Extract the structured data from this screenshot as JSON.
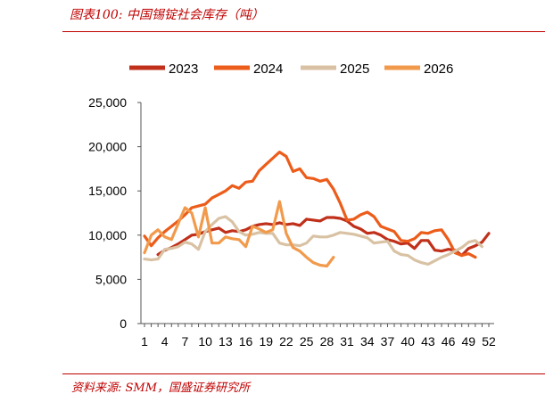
{
  "page": {
    "title": "图表100:  中国锡锭社会库存（吨）",
    "source": "资料来源:  SMM，国盛证券研究所"
  },
  "chart_data": {
    "type": "line",
    "title": "中国锡锭社会库存（吨）",
    "xlabel": "",
    "ylabel": "",
    "xlim": [
      1,
      52
    ],
    "ylim": [
      0,
      25000
    ],
    "x_ticks": [
      1,
      4,
      7,
      10,
      13,
      16,
      19,
      22,
      25,
      28,
      31,
      34,
      37,
      40,
      43,
      46,
      49,
      52
    ],
    "y_ticks": [
      0,
      5000,
      10000,
      15000,
      20000,
      25000
    ],
    "y_tick_labels": [
      "0",
      "5,000",
      "10,000",
      "15,000",
      "20,000",
      "25,000"
    ],
    "grid": false,
    "legend_position": "top",
    "series": [
      {
        "name": "2023",
        "color": "#c0301a",
        "points": [
          [
            3,
            7800
          ],
          [
            4,
            8300
          ],
          [
            5,
            8600
          ],
          [
            6,
            9000
          ],
          [
            7,
            9500
          ],
          [
            8,
            10000
          ],
          [
            9,
            10100
          ],
          [
            10,
            10400
          ],
          [
            11,
            10600
          ],
          [
            12,
            10800
          ],
          [
            13,
            10300
          ],
          [
            14,
            10500
          ],
          [
            15,
            10400
          ],
          [
            16,
            10600
          ],
          [
            17,
            11000
          ],
          [
            18,
            11200
          ],
          [
            19,
            11300
          ],
          [
            20,
            11200
          ],
          [
            21,
            11400
          ],
          [
            22,
            11200
          ],
          [
            23,
            11300
          ],
          [
            24,
            11100
          ],
          [
            25,
            11800
          ],
          [
            26,
            11700
          ],
          [
            27,
            11600
          ],
          [
            28,
            12000
          ],
          [
            29,
            12000
          ],
          [
            30,
            11900
          ],
          [
            31,
            11600
          ],
          [
            32,
            11000
          ],
          [
            33,
            10700
          ],
          [
            34,
            10200
          ],
          [
            35,
            10300
          ],
          [
            36,
            10000
          ],
          [
            37,
            9500
          ],
          [
            38,
            9300
          ],
          [
            39,
            9000
          ],
          [
            40,
            9100
          ],
          [
            41,
            8500
          ],
          [
            42,
            9400
          ],
          [
            43,
            9400
          ],
          [
            44,
            8300
          ],
          [
            45,
            8200
          ],
          [
            46,
            8400
          ],
          [
            47,
            8300
          ],
          [
            48,
            7700
          ],
          [
            49,
            8500
          ],
          [
            50,
            8800
          ],
          [
            51,
            9200
          ],
          [
            52,
            10200
          ]
        ]
      },
      {
        "name": "2024",
        "color": "#ec5c1a",
        "points": [
          [
            1,
            9900
          ],
          [
            2,
            8800
          ],
          [
            3,
            9700
          ],
          [
            4,
            10400
          ],
          [
            5,
            11000
          ],
          [
            6,
            11600
          ],
          [
            7,
            12300
          ],
          [
            8,
            13100
          ],
          [
            9,
            13300
          ],
          [
            10,
            13500
          ],
          [
            11,
            14200
          ],
          [
            12,
            14600
          ],
          [
            13,
            15000
          ],
          [
            14,
            15600
          ],
          [
            15,
            15300
          ],
          [
            16,
            16000
          ],
          [
            17,
            16100
          ],
          [
            18,
            17300
          ],
          [
            19,
            18000
          ],
          [
            20,
            18700
          ],
          [
            21,
            19400
          ],
          [
            22,
            18900
          ],
          [
            23,
            17200
          ],
          [
            24,
            17500
          ],
          [
            25,
            16500
          ],
          [
            26,
            16400
          ],
          [
            27,
            16100
          ],
          [
            28,
            16300
          ],
          [
            29,
            15200
          ],
          [
            30,
            13600
          ],
          [
            31,
            11700
          ],
          [
            32,
            11800
          ],
          [
            33,
            12300
          ],
          [
            34,
            12600
          ],
          [
            35,
            12100
          ],
          [
            36,
            11000
          ],
          [
            37,
            10700
          ],
          [
            38,
            10400
          ],
          [
            39,
            9400
          ],
          [
            40,
            9300
          ],
          [
            41,
            9600
          ],
          [
            42,
            10300
          ],
          [
            43,
            10200
          ],
          [
            44,
            10500
          ],
          [
            45,
            10600
          ],
          [
            46,
            9500
          ],
          [
            47,
            8000
          ],
          [
            48,
            7700
          ],
          [
            49,
            7900
          ],
          [
            50,
            7500
          ]
        ]
      },
      {
        "name": "2025",
        "color": "#d9c2a4",
        "points": [
          [
            1,
            7300
          ],
          [
            2,
            7200
          ],
          [
            3,
            7300
          ],
          [
            4,
            8400
          ],
          [
            5,
            8500
          ],
          [
            6,
            8700
          ],
          [
            7,
            9200
          ],
          [
            8,
            9000
          ],
          [
            9,
            8400
          ],
          [
            10,
            10400
          ],
          [
            11,
            11200
          ],
          [
            12,
            11900
          ],
          [
            13,
            12100
          ],
          [
            14,
            11500
          ],
          [
            15,
            10400
          ],
          [
            16,
            10000
          ],
          [
            17,
            10100
          ],
          [
            18,
            10300
          ],
          [
            19,
            10200
          ],
          [
            20,
            10200
          ],
          [
            21,
            9100
          ],
          [
            22,
            8900
          ],
          [
            23,
            8900
          ],
          [
            24,
            8800
          ],
          [
            25,
            9100
          ],
          [
            26,
            9900
          ],
          [
            27,
            9800
          ],
          [
            28,
            9800
          ],
          [
            29,
            10000
          ],
          [
            30,
            10300
          ],
          [
            31,
            10200
          ],
          [
            32,
            10100
          ],
          [
            33,
            9900
          ],
          [
            34,
            9700
          ],
          [
            35,
            9100
          ],
          [
            36,
            9200
          ],
          [
            37,
            9300
          ],
          [
            38,
            8200
          ],
          [
            39,
            7800
          ],
          [
            40,
            7700
          ],
          [
            41,
            7200
          ],
          [
            42,
            6900
          ],
          [
            43,
            6700
          ],
          [
            44,
            7100
          ],
          [
            45,
            7500
          ],
          [
            46,
            7800
          ],
          [
            47,
            8200
          ],
          [
            48,
            8600
          ],
          [
            49,
            9200
          ],
          [
            50,
            9400
          ],
          [
            51,
            8700
          ]
        ]
      },
      {
        "name": "2026",
        "color": "#f29a4c",
        "points": [
          [
            1,
            8000
          ],
          [
            2,
            10000
          ],
          [
            3,
            10600
          ],
          [
            4,
            9800
          ],
          [
            5,
            9500
          ],
          [
            6,
            11300
          ],
          [
            7,
            13100
          ],
          [
            8,
            12500
          ],
          [
            9,
            9800
          ],
          [
            10,
            13100
          ],
          [
            11,
            9100
          ],
          [
            12,
            9100
          ],
          [
            13,
            9800
          ],
          [
            14,
            9600
          ],
          [
            15,
            9500
          ],
          [
            16,
            8700
          ],
          [
            17,
            11000
          ],
          [
            18,
            10700
          ],
          [
            19,
            10300
          ],
          [
            20,
            10600
          ],
          [
            21,
            13800
          ],
          [
            22,
            10200
          ],
          [
            23,
            8600
          ],
          [
            24,
            8200
          ],
          [
            25,
            7500
          ],
          [
            26,
            6900
          ],
          [
            27,
            6600
          ],
          [
            28,
            6500
          ],
          [
            29,
            7500
          ]
        ]
      }
    ]
  }
}
